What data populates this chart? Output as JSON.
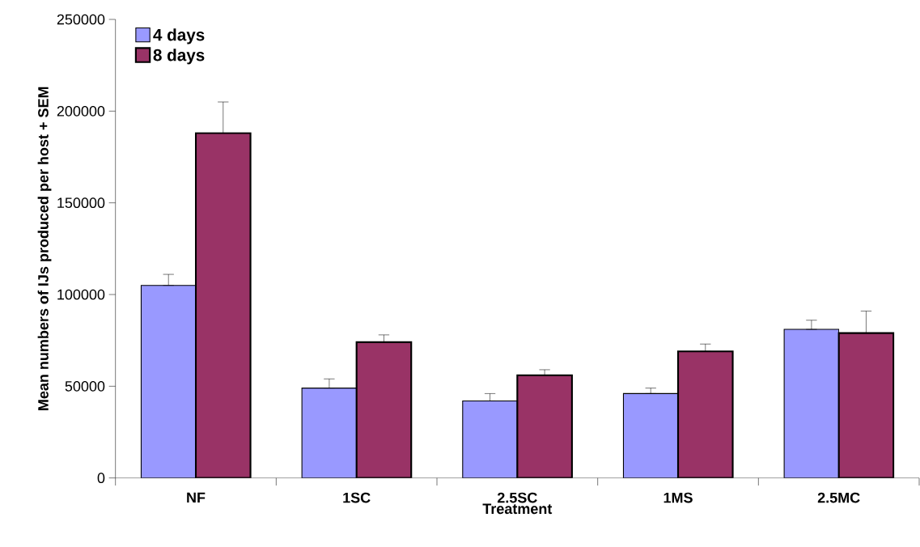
{
  "chart_data": {
    "type": "bar",
    "xlabel": "Treatment",
    "ylabel": "Mean numbers of IJs produced per host + SEM",
    "categories": [
      "NF",
      "1SC",
      "2.5SC",
      "1MS",
      "2.5MC"
    ],
    "series": [
      {
        "name": "4 days",
        "color": "#9999ff",
        "values": [
          105000,
          49000,
          42000,
          46000,
          81000
        ],
        "errors": [
          [
            105000,
            111000
          ],
          [
            49000,
            54000
          ],
          [
            42000,
            46000
          ],
          [
            46000,
            49000
          ],
          [
            81000,
            86000
          ]
        ]
      },
      {
        "name": "8 days",
        "color": "#993366",
        "values": [
          188000,
          74000,
          56000,
          69000,
          79000
        ],
        "errors": [
          [
            188000,
            205000
          ],
          [
            74000,
            78000
          ],
          [
            56000,
            59000
          ],
          [
            69000,
            73000
          ],
          [
            79000,
            91000
          ]
        ]
      }
    ],
    "ylim": [
      0,
      250000
    ],
    "yticks": [
      0,
      50000,
      100000,
      150000,
      200000,
      250000
    ],
    "legend": "top left"
  }
}
